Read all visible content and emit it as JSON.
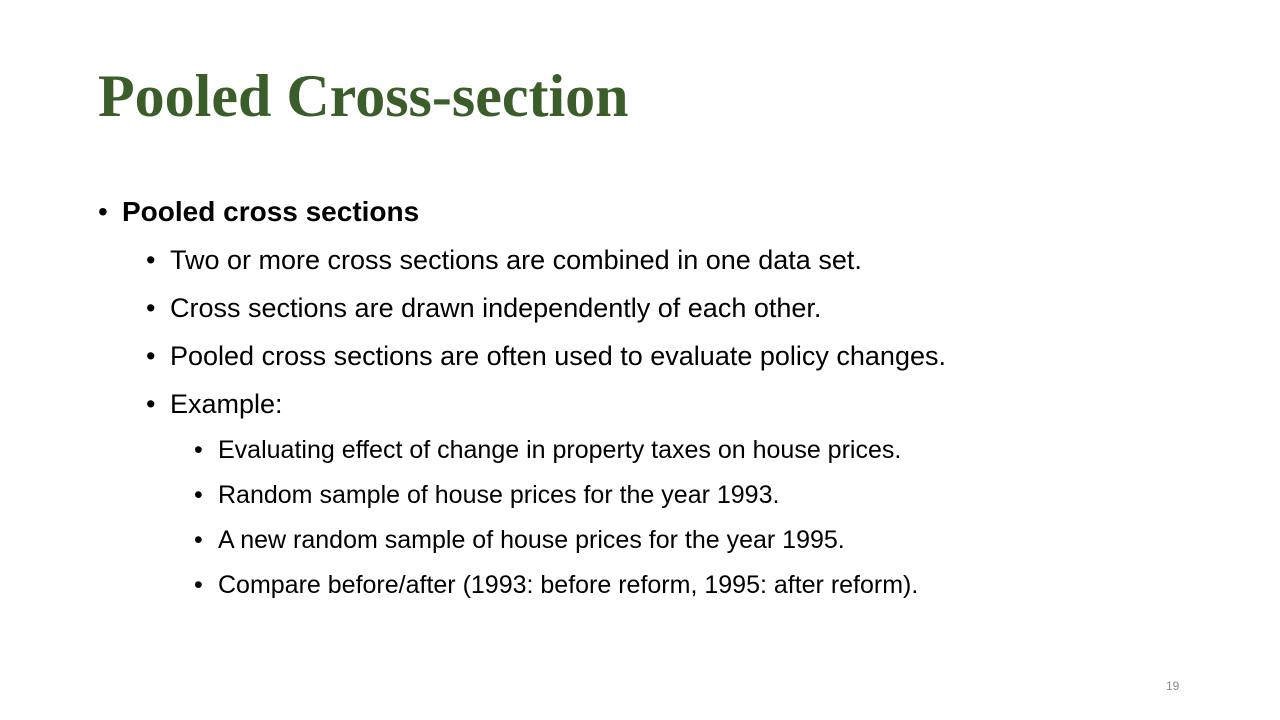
{
  "slide": {
    "title": "Pooled Cross-section",
    "bullet_glyph": "•",
    "items": [
      {
        "level": 1,
        "text": "Pooled cross sections"
      },
      {
        "level": 2,
        "text": "Two or more cross sections are combined in one data set."
      },
      {
        "level": 2,
        "text": "Cross sections are drawn independently of each other."
      },
      {
        "level": 2,
        "text": "Pooled cross sections are often used to evaluate policy changes."
      },
      {
        "level": 2,
        "text": "Example:"
      },
      {
        "level": 3,
        "text": "Evaluating effect of change in property taxes on house prices."
      },
      {
        "level": 3,
        "text": "Random sample of house prices for the year 1993."
      },
      {
        "level": 3,
        "text": "A new random sample of house prices for the year 1995."
      },
      {
        "level": 3,
        "text": "Compare before/after (1993: before reform, 1995: after reform)."
      }
    ],
    "page_number": "19"
  },
  "colors": {
    "title": "#3a5d2a",
    "text": "#000000",
    "page_number": "#8c8c8c",
    "background": "#ffffff"
  }
}
